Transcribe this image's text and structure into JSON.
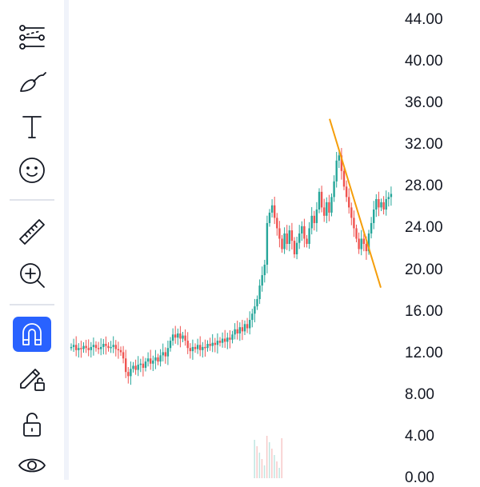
{
  "toolbar": {
    "tools": [
      {
        "name": "path-tool",
        "icon": "path-icon"
      },
      {
        "name": "parallel-channel-tool",
        "icon": "parallel-channel-icon"
      },
      {
        "name": "brush-tool",
        "icon": "brush-icon"
      },
      {
        "name": "text-tool",
        "icon": "text-icon"
      },
      {
        "name": "emoji-tool",
        "icon": "smiley-icon"
      },
      {
        "name": "measure-tool",
        "icon": "ruler-icon"
      },
      {
        "name": "zoom-in-tool",
        "icon": "zoom-in-icon"
      },
      {
        "name": "magnet-mode",
        "icon": "magnet-icon",
        "active": true
      },
      {
        "name": "stay-in-drawing-mode",
        "icon": "pencil-lock-icon"
      },
      {
        "name": "lock-drawings",
        "icon": "lock-open-icon"
      },
      {
        "name": "hide-drawings",
        "icon": "eye-icon"
      }
    ],
    "active_color": "#2962ff"
  },
  "chart_data": {
    "type": "candlestick",
    "y_ticks": [
      "44.00",
      "40.00",
      "36.00",
      "32.00",
      "28.00",
      "24.00",
      "20.00",
      "16.00",
      "12.00",
      "8.00",
      "4.00",
      "0.00"
    ],
    "ylim": [
      0,
      44
    ],
    "up_color": "#26a69a",
    "down_color": "#ef5350",
    "closes": [
      12.6,
      12.8,
      12.3,
      12.5,
      12.4,
      12.7,
      12.5,
      12.3,
      12.6,
      12.8,
      12.5,
      12.4,
      12.6,
      12.9,
      12.7,
      12.5,
      12.6,
      12.8,
      12.4,
      12.3,
      12.1,
      11.5,
      10.2,
      9.8,
      10.5,
      10.8,
      10.4,
      10.9,
      11.0,
      10.6,
      11.2,
      11.5,
      11.0,
      11.3,
      11.6,
      11.2,
      11.8,
      12.1,
      11.7,
      12.5,
      13.2,
      13.8,
      13.5,
      13.9,
      13.4,
      13.7,
      13.2,
      12.5,
      12.2,
      12.6,
      12.4,
      12.8,
      12.3,
      12.6,
      12.5,
      12.9,
      12.7,
      13.0,
      12.8,
      13.2,
      13.0,
      13.4,
      13.1,
      13.5,
      13.3,
      13.8,
      14.3,
      13.9,
      14.5,
      14.1,
      14.8,
      14.4,
      15.2,
      15.8,
      16.5,
      17.2,
      18.5,
      19.5,
      20.5,
      24.5,
      25.5,
      26.2,
      25.0,
      24.0,
      23.0,
      22.0,
      23.5,
      22.5,
      23.8,
      22.8,
      21.5,
      22.6,
      23.5,
      24.2,
      23.0,
      22.5,
      24.0,
      25.2,
      24.5,
      25.8,
      27.5,
      26.0,
      25.2,
      26.5,
      25.5,
      27.0,
      28.5,
      30.5,
      31.0,
      29.5,
      28.0,
      27.0,
      26.0,
      25.0,
      24.0,
      23.0,
      22.0,
      23.0,
      22.5,
      21.8,
      23.5,
      24.5,
      25.8,
      26.8,
      26.0,
      26.5,
      25.8,
      26.8,
      27.0,
      27.3
    ],
    "trendline": {
      "color": "#f59e0b",
      "start_price": 34.5,
      "end_price": 18.3
    }
  }
}
